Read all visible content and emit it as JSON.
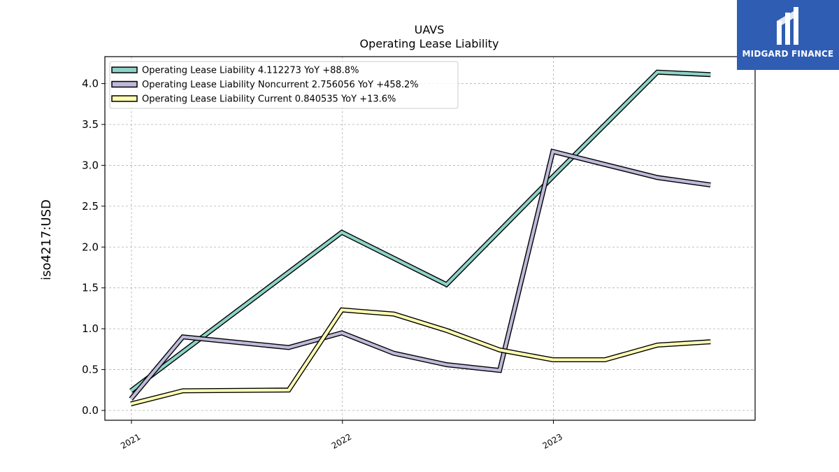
{
  "brand": {
    "name": "MIDGARD FINANCE",
    "color": "#2f5db3"
  },
  "chart_data": {
    "type": "line",
    "title": "UAVS",
    "subtitle": "Operating Lease Liability",
    "xlabel": "",
    "ylabel": "iso4217:USD",
    "x_ticks": [
      "2021",
      "2022",
      "2023"
    ],
    "y_ticks": [
      "0.0",
      "0.5",
      "1.0",
      "1.5",
      "2.0",
      "2.5",
      "3.0",
      "3.5",
      "4.0"
    ],
    "ylim": [
      -0.12,
      4.33
    ],
    "xlim": [
      "2020-11-16",
      "2023-12-16"
    ],
    "grid": true,
    "legend_position": "top-left",
    "series": [
      {
        "name": "Operating Lease Liability  4.112273 YoY +88.8%",
        "color": "#8dd3c7",
        "points": [
          {
            "x": "2020-12-31",
            "y": 0.24
          },
          {
            "x": "2021-12-31",
            "y": 2.18
          },
          {
            "x": "2022-06-30",
            "y": 1.54
          },
          {
            "x": "2022-12-31",
            "y": 2.86
          },
          {
            "x": "2023-06-30",
            "y": 4.14
          },
          {
            "x": "2023-09-30",
            "y": 4.11
          }
        ]
      },
      {
        "name": "Operating Lease Liability Noncurrent  2.756056 YoY +458.2%",
        "color": "#bebada",
        "points": [
          {
            "x": "2020-12-31",
            "y": 0.14
          },
          {
            "x": "2021-03-31",
            "y": 0.9
          },
          {
            "x": "2021-09-30",
            "y": 0.77
          },
          {
            "x": "2021-12-31",
            "y": 0.95
          },
          {
            "x": "2022-03-31",
            "y": 0.7
          },
          {
            "x": "2022-06-30",
            "y": 0.56
          },
          {
            "x": "2022-09-30",
            "y": 0.49
          },
          {
            "x": "2022-12-31",
            "y": 3.17
          },
          {
            "x": "2023-03-31",
            "y": 3.01
          },
          {
            "x": "2023-06-30",
            "y": 2.85
          },
          {
            "x": "2023-09-30",
            "y": 2.76
          }
        ]
      },
      {
        "name": "Operating Lease Liability Current  0.840535 YoY +13.6%",
        "color": "#ffffb3",
        "points": [
          {
            "x": "2020-12-31",
            "y": 0.08
          },
          {
            "x": "2021-03-31",
            "y": 0.24
          },
          {
            "x": "2021-09-30",
            "y": 0.25
          },
          {
            "x": "2021-12-31",
            "y": 1.23
          },
          {
            "x": "2022-03-31",
            "y": 1.18
          },
          {
            "x": "2022-06-30",
            "y": 0.98
          },
          {
            "x": "2022-09-30",
            "y": 0.74
          },
          {
            "x": "2022-12-31",
            "y": 0.62
          },
          {
            "x": "2023-03-31",
            "y": 0.62
          },
          {
            "x": "2023-06-30",
            "y": 0.8
          },
          {
            "x": "2023-09-30",
            "y": 0.84
          }
        ]
      }
    ]
  }
}
